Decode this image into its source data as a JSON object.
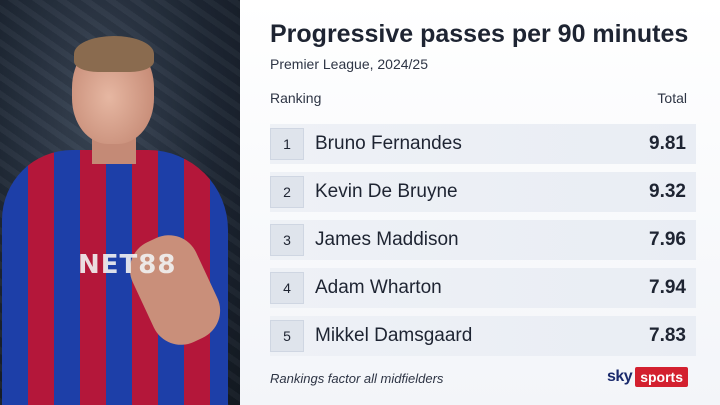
{
  "graphic": {
    "title": "Progressive passes per 90 minutes",
    "subtitle": "Premier League, 2024/25",
    "col_rank": "Ranking",
    "col_total": "Total",
    "rows": [
      {
        "rank": "1",
        "name": "Bruno Fernandes",
        "value": "9.81"
      },
      {
        "rank": "2",
        "name": "Kevin De Bruyne",
        "value": "9.32"
      },
      {
        "rank": "3",
        "name": "James Maddison",
        "value": "7.96"
      },
      {
        "rank": "4",
        "name": "Adam Wharton",
        "value": "7.94"
      },
      {
        "rank": "5",
        "name": "Mikkel Damsgaard",
        "value": "7.83"
      }
    ],
    "footnote": "Rankings factor all midfielders",
    "logo": {
      "sky": "sky",
      "sports": "sports"
    }
  },
  "photo": {
    "shirt_text": "NET88",
    "colors": {
      "shirt_blue": "#1d3fa8",
      "shirt_red": "#b4173a"
    }
  },
  "colors": {
    "logo_red": "#d3202f",
    "text": "#1e2432"
  }
}
